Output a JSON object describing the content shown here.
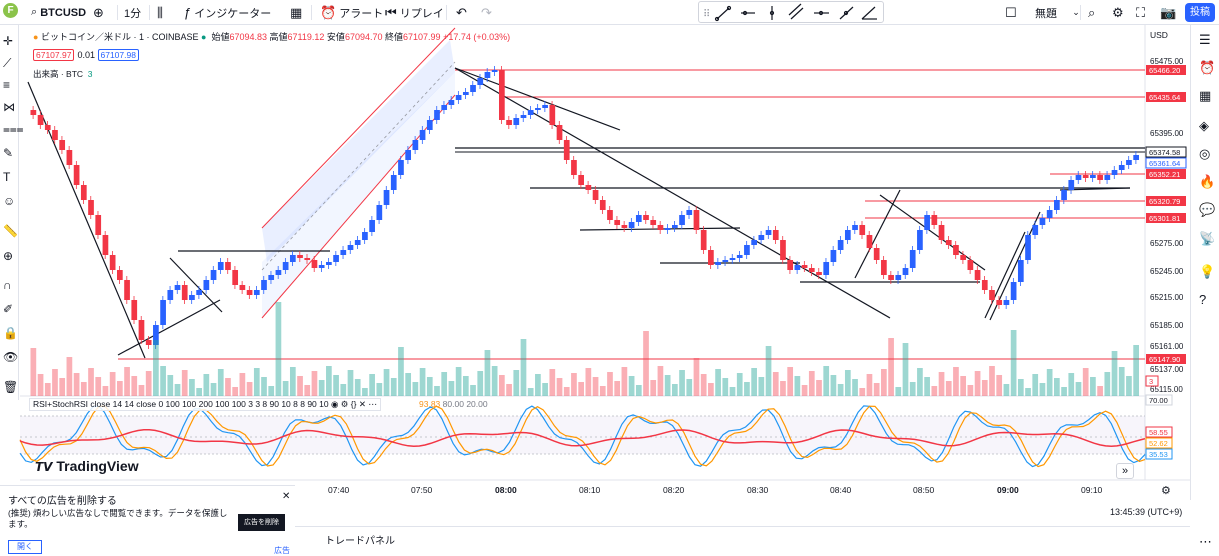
{
  "toolbar": {
    "symbol": "BTCUSD",
    "interval": "1分",
    "indicators_label": "インジケーター",
    "alert_label": "アラート",
    "replay_label": "リプレイ",
    "layout_name": "無題",
    "publish_label": "投稿"
  },
  "legend": {
    "title": "ビットコイン／米ドル · 1 · COINBASE",
    "open_label": "始値",
    "open": "67094.83",
    "high_label": "高値",
    "high": "67119.12",
    "low_label": "安値",
    "low": "67094.70",
    "close_label": "終値",
    "close": "67107.99",
    "change": "+17.74 (+0.03%)",
    "sell_price": "67107.97",
    "spread": "0.01",
    "buy_price": "67107.98",
    "volume_label": "出来高 · BTC",
    "volume_value": "3"
  },
  "rsi_legend": {
    "label": "RSI+StochRSI close 14 14 close 0 100 100 200 100 100 3 3 8 90 10 8 8 90 10",
    "v1": "93.83",
    "v2": "80.00",
    "v3": "20.00"
  },
  "currency": "USD",
  "price_axis": [
    "65475.00",
    "65395.00",
    "65275.00",
    "65245.00",
    "65215.00",
    "65185.00",
    "65161.00",
    "65137.00",
    "65115.00"
  ],
  "price_tags": [
    {
      "value": "65466.20",
      "kind": "red"
    },
    {
      "value": "65435.64",
      "kind": "red"
    },
    {
      "value": "65374.58",
      "kind": "black"
    },
    {
      "value": "65361.64",
      "kind": "blue"
    },
    {
      "value": "65352.21",
      "kind": "red"
    },
    {
      "value": "65320.79",
      "kind": "red"
    },
    {
      "value": "65301.81",
      "kind": "red"
    },
    {
      "value": "65147.90",
      "kind": "red"
    },
    {
      "value": "3",
      "kind": "redline"
    }
  ],
  "rsi_axis": [
    {
      "value": "70.00",
      "kind": "plain"
    },
    {
      "value": "58.55",
      "kind": "red"
    },
    {
      "value": "52.62",
      "kind": "orange"
    },
    {
      "value": "35.53",
      "kind": "blue"
    }
  ],
  "time_axis": [
    "07:40",
    "07:50",
    "08:00",
    "08:10",
    "08:20",
    "08:30",
    "08:40",
    "08:50",
    "09:00",
    "09:10"
  ],
  "clock": "13:45:39 (UTC+9)",
  "brand": "TradingView",
  "ad": {
    "title": "すべての広告を削除する",
    "desc": "(推奨) 煩わしい広告なしで閲覧できます。データを保護します。",
    "remove_label": "広告を削除",
    "open_label": "開く",
    "ad_tag": "広告"
  },
  "trade_panel_label": "トレードパネル",
  "colors": {
    "up": "#2962ff",
    "down": "#f23645",
    "accent": "#2962ff"
  }
}
